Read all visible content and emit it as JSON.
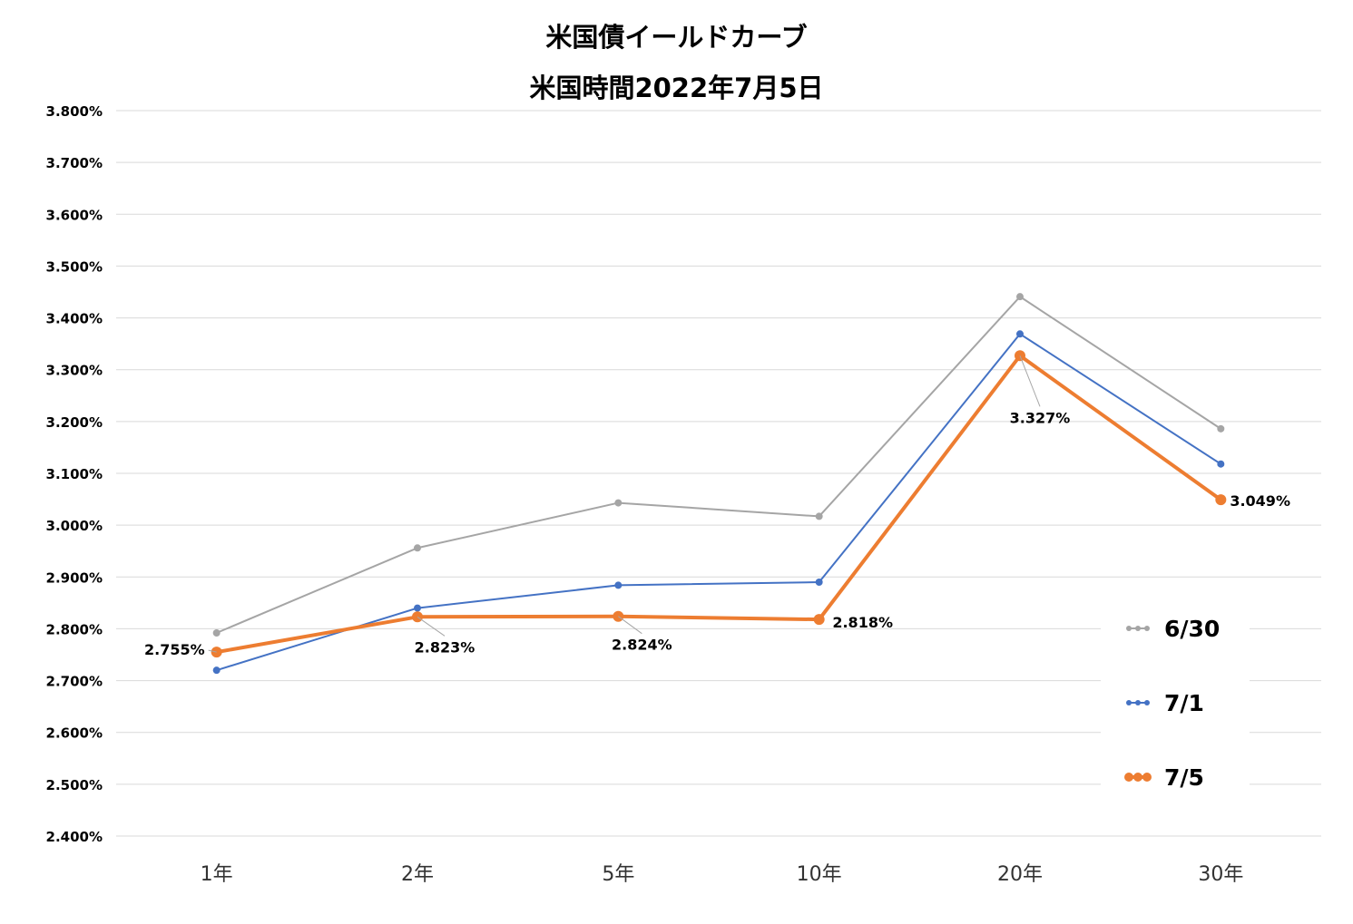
{
  "chart_data": {
    "type": "line",
    "title": "米国債イールドカーブ",
    "subtitle": "米国時間2022年7月5日",
    "xlabel": "",
    "ylabel": "",
    "categories": [
      "1年",
      "2年",
      "5年",
      "10年",
      "20年",
      "30年"
    ],
    "ylim": [
      2.4,
      3.8
    ],
    "yticks": [
      "3.800%",
      "3.700%",
      "3.600%",
      "3.500%",
      "3.400%",
      "3.300%",
      "3.200%",
      "3.100%",
      "3.000%",
      "2.900%",
      "2.800%",
      "2.700%",
      "2.600%",
      "2.500%",
      "2.400%"
    ],
    "grid": true,
    "legend_position": "right",
    "series": [
      {
        "name": "6/30",
        "color": "#A5A5A5",
        "values": [
          2.792,
          2.956,
          3.043,
          3.017,
          3.441,
          3.186
        ]
      },
      {
        "name": "7/1",
        "color": "#4472C4",
        "values": [
          2.72,
          2.84,
          2.884,
          2.89,
          3.369,
          3.118
        ]
      },
      {
        "name": "7/5",
        "color": "#ED7D31",
        "values": [
          2.755,
          2.823,
          2.824,
          2.818,
          3.327,
          3.049
        ]
      }
    ],
    "data_labels": [
      {
        "series": "7/5",
        "category": "1年",
        "text": "2.755%"
      },
      {
        "series": "7/5",
        "category": "2年",
        "text": "2.823%"
      },
      {
        "series": "7/5",
        "category": "5年",
        "text": "2.824%"
      },
      {
        "series": "7/5",
        "category": "10年",
        "text": "2.818%"
      },
      {
        "series": "7/5",
        "category": "20年",
        "text": "3.327%"
      },
      {
        "series": "7/5",
        "category": "30年",
        "text": "3.049%"
      }
    ]
  }
}
